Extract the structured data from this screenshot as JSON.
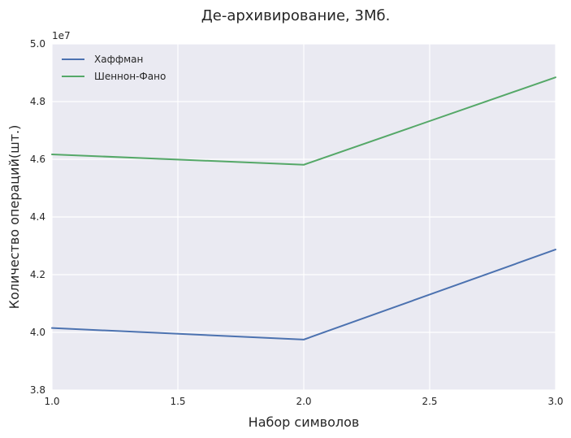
{
  "chart_data": {
    "type": "line",
    "title": "Де-архивирование, 3Мб.",
    "xlabel": "Набор символов",
    "ylabel": "Количество операций(шт.)",
    "y_offset_label": "1e7",
    "x": [
      1.0,
      2.0,
      3.0
    ],
    "xlim": [
      1.0,
      3.0
    ],
    "ylim": [
      3.8,
      5.0
    ],
    "x_ticks": [
      1.0,
      1.5,
      2.0,
      2.5,
      3.0
    ],
    "x_tick_labels": [
      "1.0",
      "1.5",
      "2.0",
      "2.5",
      "3.0"
    ],
    "y_ticks": [
      3.8,
      4.0,
      4.2,
      4.4,
      4.6,
      4.8,
      5.0
    ],
    "y_tick_labels": [
      "3.8",
      "4.0",
      "4.2",
      "4.4",
      "4.6",
      "4.8",
      "5.0"
    ],
    "series": [
      {
        "name": "Хаффман",
        "color": "#4c72b0",
        "values": [
          4.015,
          3.975,
          4.287
        ]
      },
      {
        "name": "Шеннон-Фано",
        "color": "#55a868",
        "values": [
          4.617,
          4.581,
          4.884
        ]
      }
    ],
    "grid": true,
    "legend_position": "upper-left",
    "background_color": "#eaeaf2",
    "grid_color": "#ffffff"
  }
}
